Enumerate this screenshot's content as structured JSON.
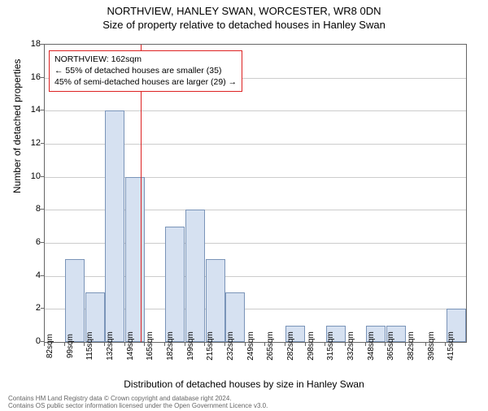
{
  "titles": {
    "main": "NORTHVIEW, HANLEY SWAN, WORCESTER, WR8 0DN",
    "sub": "Size of property relative to detached houses in Hanley Swan"
  },
  "axes": {
    "ylabel": "Number of detached properties",
    "xlabel": "Distribution of detached houses by size in Hanley Swan",
    "ylim": [
      0,
      18
    ],
    "ytick_step": 2,
    "label_fontsize": 12
  },
  "chart": {
    "type": "histogram",
    "bar_color": "#d6e1f1",
    "bar_border_color": "#7a94b8",
    "grid_color": "#cccccc",
    "background_color": "#ffffff",
    "x_start": 82,
    "x_step": 16.67,
    "x_count": 21,
    "x_unit": "sqm",
    "values": [
      0,
      5,
      3,
      14,
      10,
      0,
      7,
      8,
      5,
      3,
      0,
      0,
      1,
      0,
      1,
      0,
      1,
      1,
      0,
      0,
      2
    ],
    "xtick_labels": [
      "82sqm",
      "99sqm",
      "115sqm",
      "132sqm",
      "149sqm",
      "165sqm",
      "182sqm",
      "199sqm",
      "215sqm",
      "232sqm",
      "249sqm",
      "265sqm",
      "282sqm",
      "298sqm",
      "315sqm",
      "332sqm",
      "348sqm",
      "365sqm",
      "382sqm",
      "398sqm",
      "415sqm"
    ]
  },
  "reference": {
    "value": 162,
    "line_color": "#d22",
    "annotation": {
      "line1": "NORTHVIEW: 162sqm",
      "line2": "← 55% of detached houses are smaller (35)",
      "line3": "45% of semi-detached houses are larger (29) →",
      "border_color": "#d22",
      "fontsize": 10.5
    }
  },
  "footer": {
    "line1": "Contains HM Land Registry data © Crown copyright and database right 2024.",
    "line2": "Contains OS public sector information licensed under the Open Government Licence v3.0."
  }
}
